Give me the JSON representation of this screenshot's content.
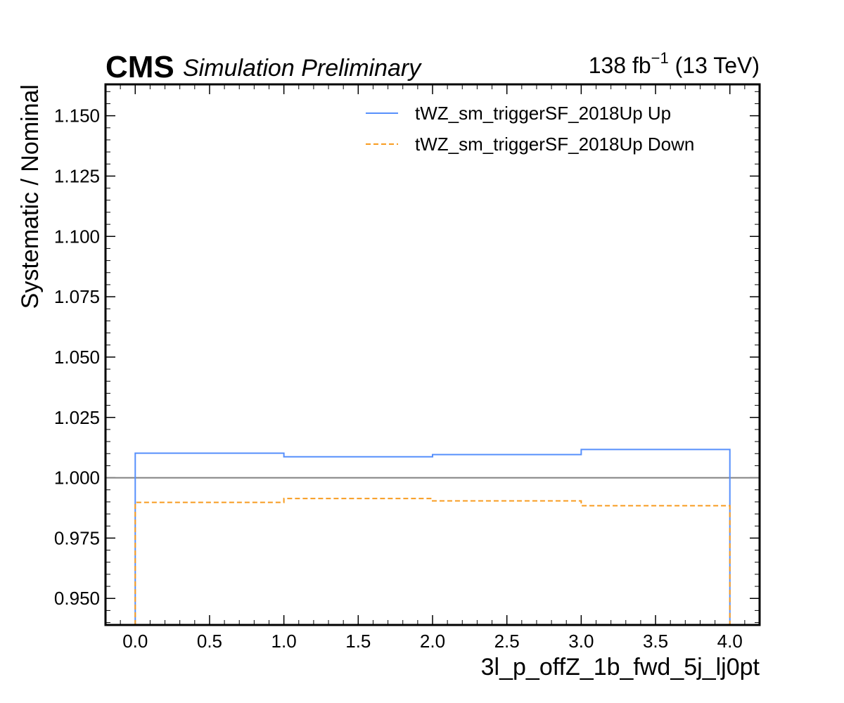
{
  "header": {
    "experiment": "CMS",
    "status": "Simulation Preliminary",
    "lumi_value": "138 fb",
    "lumi_exponent": "−1",
    "energy": " (13 TeV)"
  },
  "chart_data": {
    "type": "line",
    "drawstyle": "steps",
    "xlabel": "3l_p_offZ_1b_fwd_5j_lj0pt",
    "ylabel": "Systematic / Nominal",
    "xlim": [
      -0.2,
      4.2
    ],
    "ylim": [
      0.939,
      1.163
    ],
    "bin_edges": [
      0,
      1,
      2,
      3,
      4
    ],
    "reference_line": 1.0,
    "x_ticks": [
      0.0,
      0.5,
      1.0,
      1.5,
      2.0,
      2.5,
      3.0,
      3.5,
      4.0
    ],
    "x_tick_labels": [
      "0.0",
      "0.5",
      "1.0",
      "1.5",
      "2.0",
      "2.5",
      "3.0",
      "3.5",
      "4.0"
    ],
    "y_ticks": [
      0.95,
      0.975,
      1.0,
      1.025,
      1.05,
      1.075,
      1.1,
      1.125,
      1.15
    ],
    "y_tick_labels": [
      "0.950",
      "0.975",
      "1.000",
      "1.025",
      "1.050",
      "1.075",
      "1.100",
      "1.125",
      "1.150"
    ],
    "series": [
      {
        "name": "tWZ_sm_triggerSF_2018Up Up",
        "values": [
          1.0102,
          1.0087,
          1.0096,
          1.0117
        ],
        "color": "#5790fc",
        "dash": "solid"
      },
      {
        "name": "tWZ_sm_triggerSF_2018Up Down",
        "values": [
          0.9898,
          0.9914,
          0.9904,
          0.9884
        ],
        "color": "#f89c20",
        "dash": "dashed"
      }
    ],
    "reference_color": "#808080",
    "grid": false,
    "legend_position": "top-right"
  }
}
